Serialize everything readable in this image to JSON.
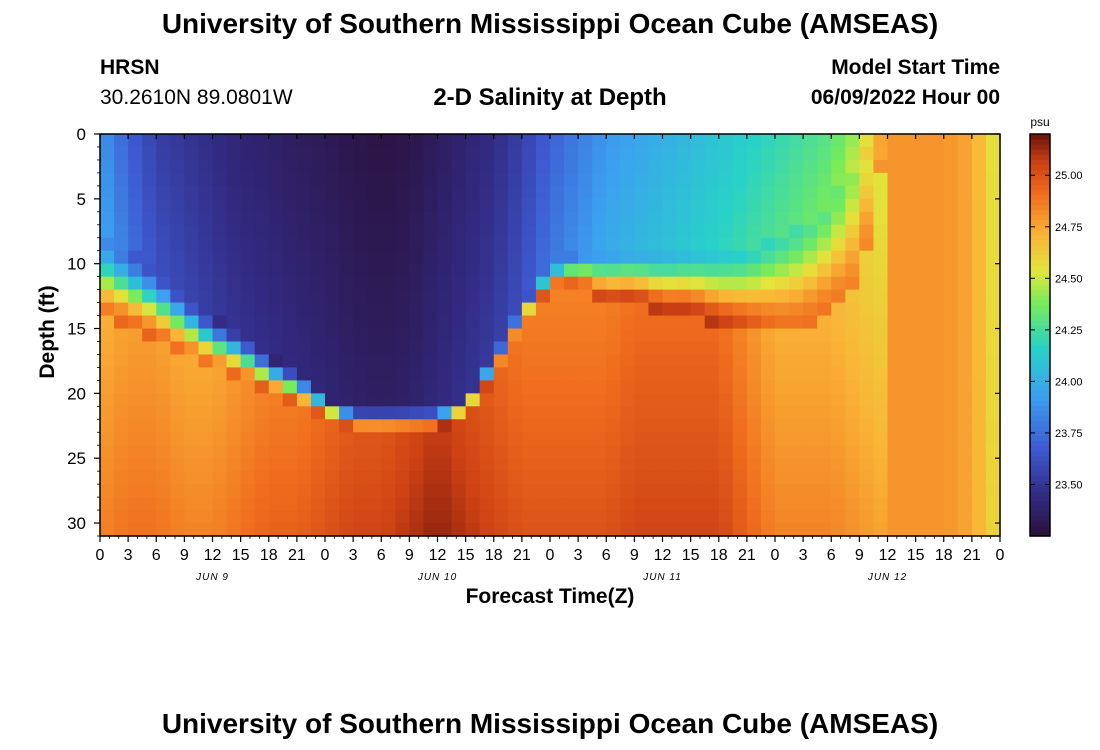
{
  "header": {
    "title": "University of Southern Mississippi Ocean Cube (AMSEAS)",
    "station_name": "HRSN",
    "station_coords": "30.2610N  89.0801W",
    "plot_title": "2-D Salinity at Depth",
    "model_start_label": "Model Start Time",
    "model_start_value": "06/09/2022 Hour 00"
  },
  "footer": {
    "title": "University of Southern Mississippi Ocean Cube (AMSEAS)"
  },
  "chart_data": {
    "type": "heatmap",
    "title": "2-D Salinity at Depth",
    "xlabel": "Forecast Time(Z)",
    "ylabel": "Depth (ft)",
    "x_hours": [
      0,
      3,
      6,
      9,
      12,
      15,
      18,
      21,
      24,
      27,
      30,
      33,
      36,
      39,
      42,
      45,
      48,
      51,
      54,
      57,
      60,
      63,
      66,
      69,
      72,
      75,
      78,
      81,
      84,
      87,
      90,
      93,
      96
    ],
    "x_tick_labels": [
      "0",
      "3",
      "6",
      "9",
      "12",
      "15",
      "18",
      "21",
      "0",
      "3",
      "6",
      "9",
      "12",
      "15",
      "18",
      "21",
      "0",
      "3",
      "6",
      "9",
      "12",
      "15",
      "18",
      "21",
      "0",
      "3",
      "6",
      "9",
      "12",
      "15",
      "18",
      "21",
      "0"
    ],
    "day_labels": [
      {
        "label": "JUN 9",
        "hour": 12
      },
      {
        "label": "JUN 10",
        "hour": 36
      },
      {
        "label": "JUN 11",
        "hour": 60
      },
      {
        "label": "JUN 12",
        "hour": 84
      }
    ],
    "xlim": [
      0,
      96
    ],
    "ylim": [
      0,
      31
    ],
    "y_ticks": [
      0,
      5,
      10,
      15,
      20,
      25,
      30
    ],
    "y_tick_labels": [
      "0",
      "5",
      "10",
      "15",
      "20",
      "25",
      "30"
    ],
    "colorbar": {
      "unit": "psu",
      "min": 23.25,
      "max": 25.2,
      "ticks": [
        23.5,
        23.75,
        24.0,
        24.25,
        24.5,
        24.75,
        25.0
      ],
      "tick_labels": [
        "23.50",
        "23.75",
        "24.00",
        "24.25",
        "24.50",
        "24.75",
        "25.00"
      ]
    },
    "profile_times": [
      0,
      3,
      6,
      9,
      12,
      15,
      18,
      21,
      24,
      27,
      30,
      33,
      36,
      39,
      42,
      45,
      48,
      51,
      54,
      57,
      60,
      63,
      66,
      69,
      72,
      75,
      78,
      81,
      84,
      87,
      90,
      93,
      96
    ],
    "halocline_top_ft": [
      8,
      9,
      10,
      12,
      14,
      15,
      17,
      18,
      20,
      21,
      21,
      21,
      21,
      20,
      17,
      13,
      10,
      9,
      9,
      9,
      9,
      9,
      9,
      9,
      8,
      7,
      5,
      2,
      0,
      0,
      0,
      0,
      0
    ],
    "halocline_bottom_ft": [
      14,
      15,
      16,
      17,
      18,
      19,
      20,
      21,
      22,
      23,
      23,
      23,
      23,
      22,
      19,
      15,
      12,
      12,
      13,
      13,
      14,
      14,
      15,
      15,
      15,
      15,
      14,
      12,
      0,
      0,
      0,
      0,
      0
    ],
    "surface_salinity_psu": [
      23.9,
      23.7,
      23.55,
      23.5,
      23.45,
      23.4,
      23.38,
      23.35,
      23.33,
      23.3,
      23.28,
      23.3,
      23.35,
      23.4,
      23.45,
      23.55,
      23.7,
      23.8,
      23.9,
      23.95,
      24.0,
      24.05,
      24.1,
      24.15,
      24.2,
      24.25,
      24.3,
      24.45,
      24.8,
      24.8,
      24.8,
      24.75,
      24.5
    ],
    "bottom_salinity_psu": [
      24.9,
      24.95,
      24.95,
      24.9,
      24.9,
      24.95,
      25.0,
      25.0,
      25.05,
      25.1,
      25.1,
      25.15,
      25.2,
      25.15,
      25.1,
      25.05,
      25.05,
      25.05,
      25.05,
      25.1,
      25.1,
      25.1,
      25.1,
      25.0,
      24.9,
      24.9,
      24.9,
      24.85,
      24.8,
      24.8,
      24.8,
      24.75,
      24.7
    ]
  }
}
